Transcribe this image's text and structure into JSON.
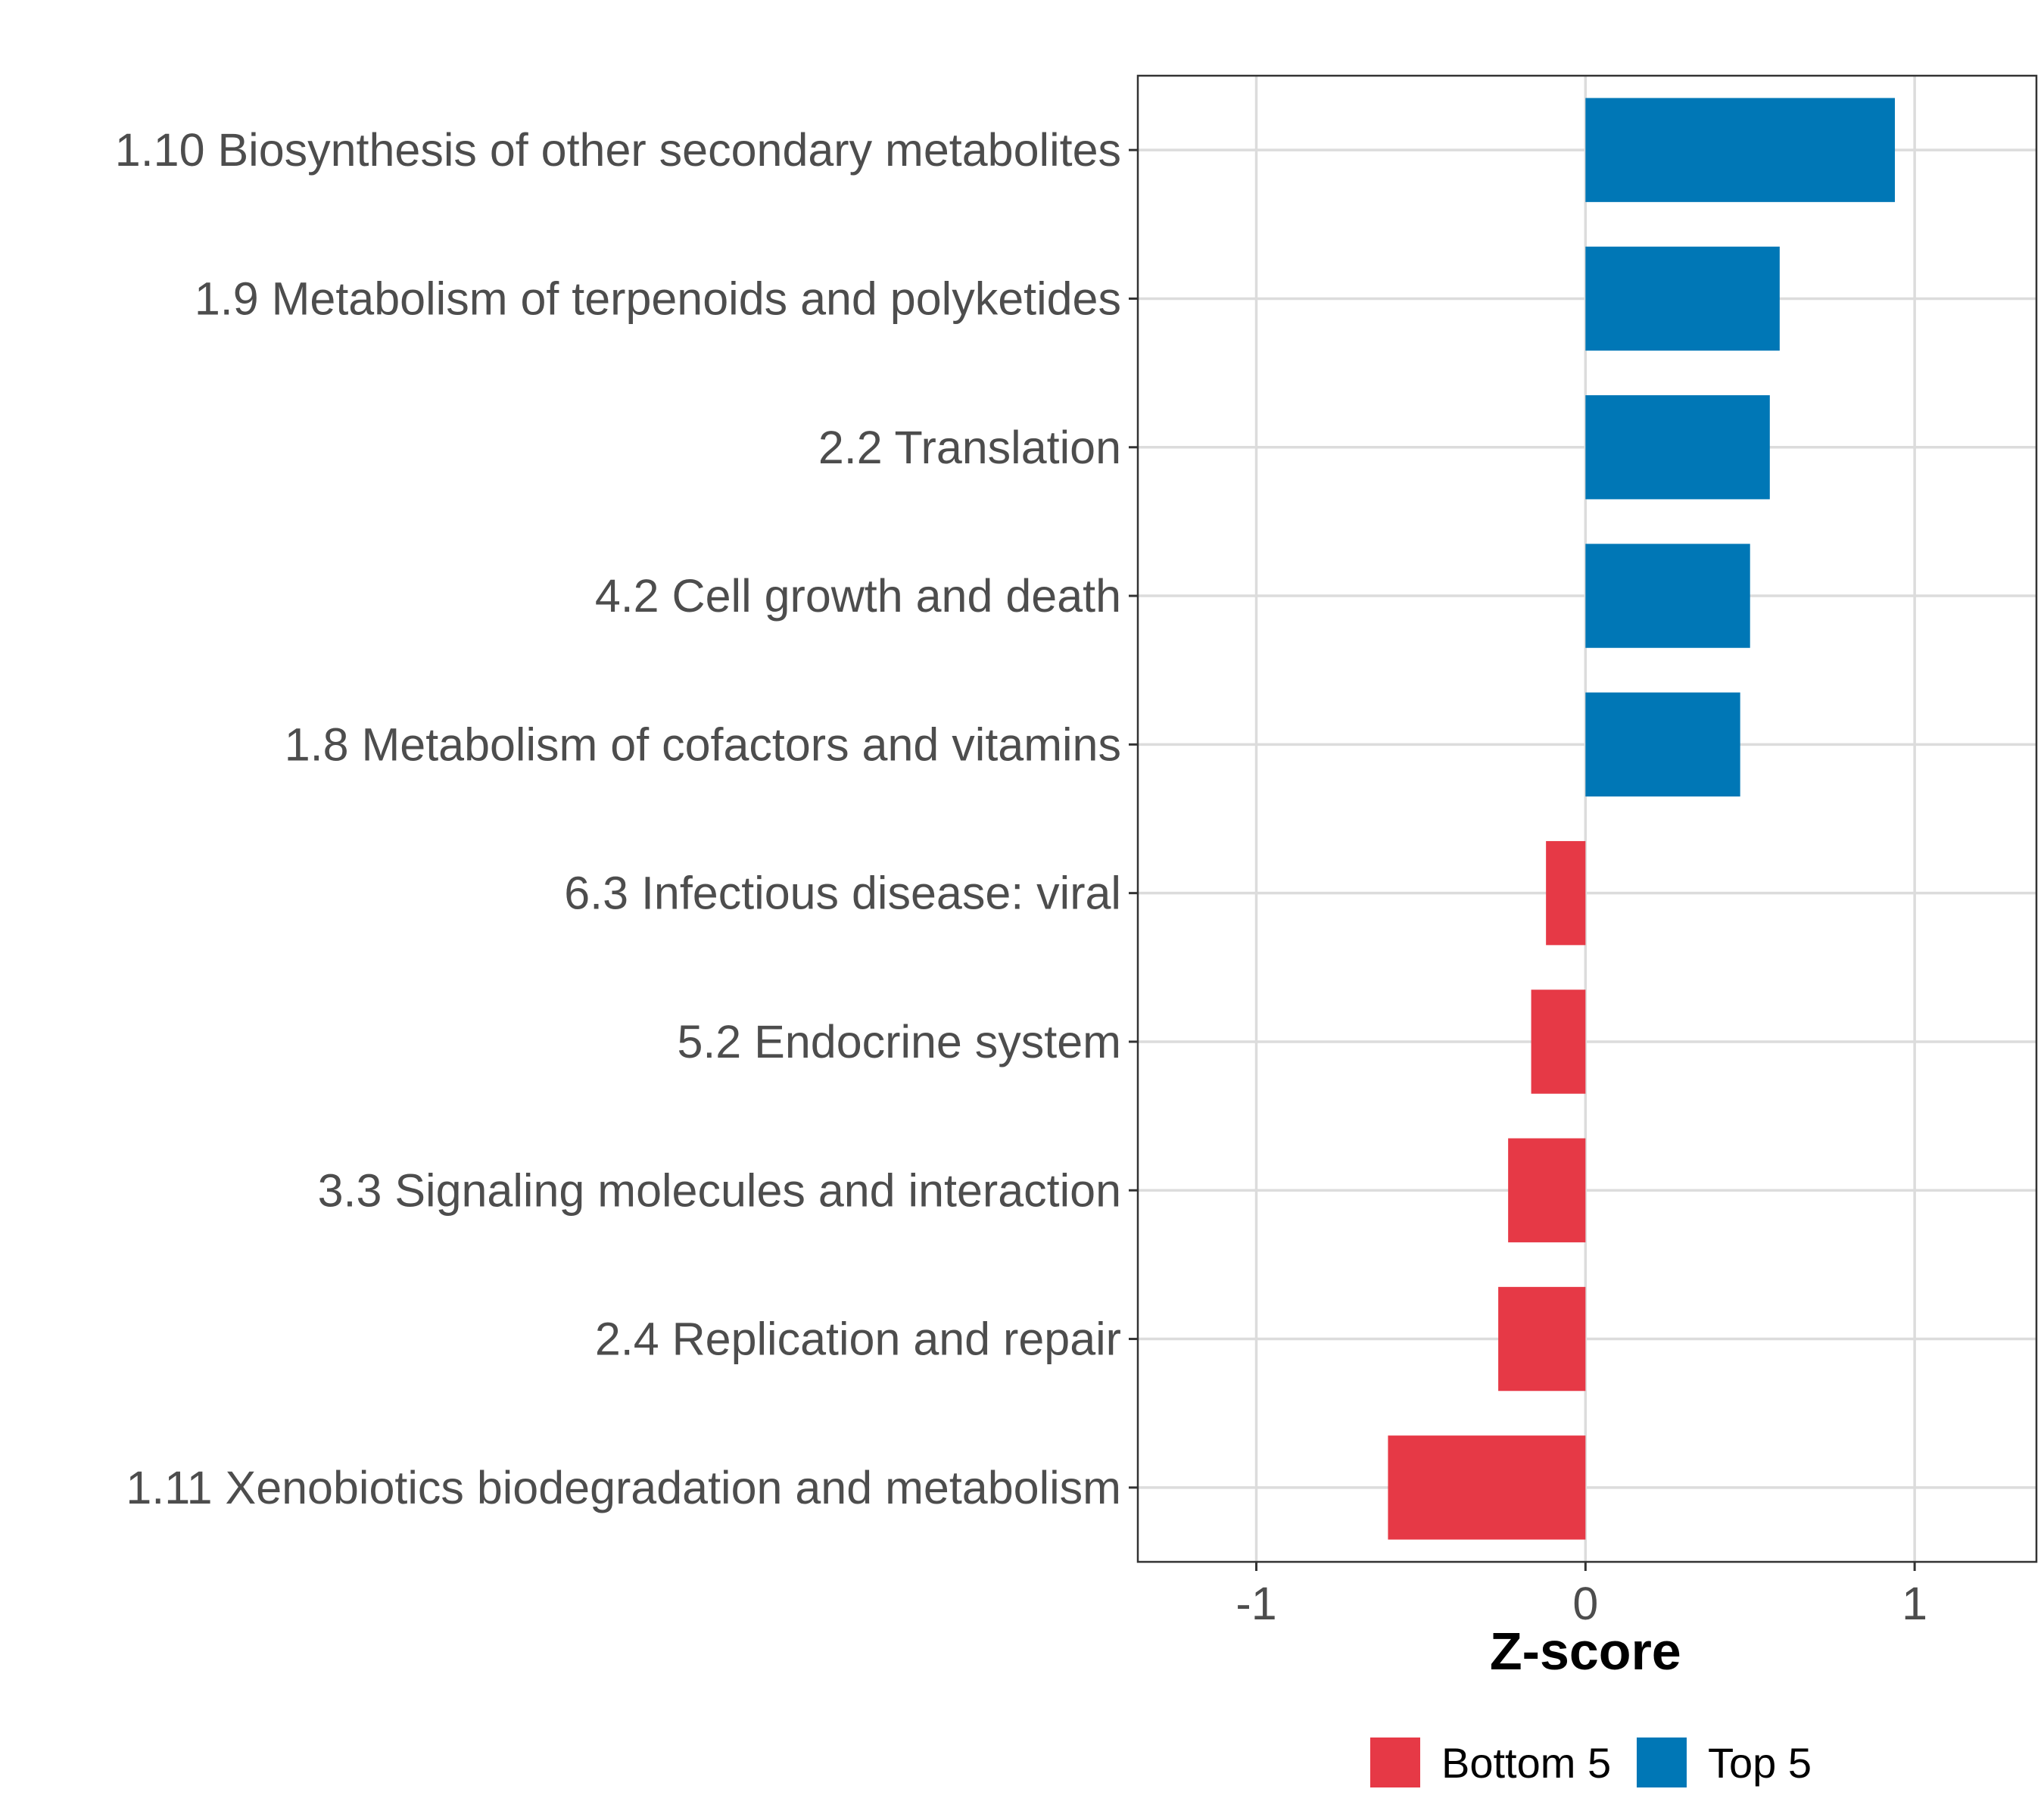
{
  "chart_data": {
    "type": "bar",
    "orientation": "horizontal",
    "title": "",
    "xlabel": "Z-score",
    "ylabel": "",
    "xlim": [
      -1.36,
      1.37
    ],
    "xticks": [
      -1,
      0,
      1
    ],
    "xtick_labels": [
      "-1",
      "0",
      "1"
    ],
    "grid": true,
    "legend_position": "bottom",
    "categories": [
      "1.10 Biosynthesis of other secondary metabolites",
      "1.9 Metabolism of terpenoids and polyketides",
      "2.2 Translation",
      "4.2 Cell growth and death",
      "1.8 Metabolism of cofactors and vitamins",
      "6.3 Infectious disease: viral",
      "5.2 Endocrine system",
      "3.3 Signaling molecules and interaction",
      "2.4 Replication and repair",
      "1.11 Xenobiotics biodegradation and metabolism"
    ],
    "values": [
      0.94,
      0.59,
      0.56,
      0.5,
      0.47,
      -0.12,
      -0.165,
      -0.235,
      -0.265,
      -0.6
    ],
    "groups": [
      "Top 5",
      "Top 5",
      "Top 5",
      "Top 5",
      "Top 5",
      "Bottom 5",
      "Bottom 5",
      "Bottom 5",
      "Bottom 5",
      "Bottom 5"
    ],
    "legend": [
      {
        "name": "Bottom 5",
        "color": "#E63946"
      },
      {
        "name": "Top 5",
        "color": "#0077B6"
      }
    ]
  }
}
